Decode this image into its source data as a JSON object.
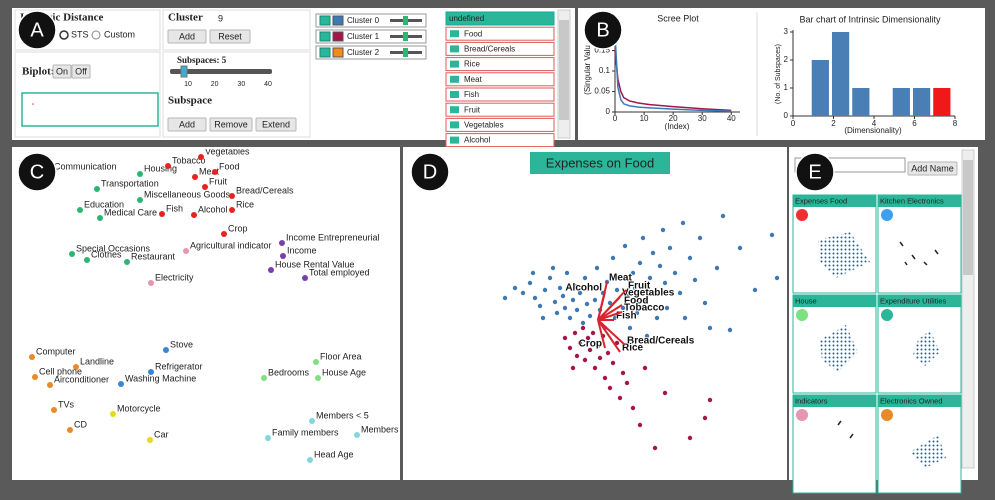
{
  "markers": [
    "A",
    "B",
    "C",
    "D",
    "E"
  ],
  "controls": {
    "distance_title": "Intrinsic Distance",
    "radio": [
      "STS",
      "Custom"
    ],
    "biplot_label": "Biplot:",
    "biplot_buttons": [
      "On",
      "Off"
    ],
    "cluster_label": "Cluster",
    "cluster_count": 9,
    "cluster_buttons": [
      "Add",
      "Reset"
    ],
    "subspaces_label": "Subspaces: 5",
    "slider_ticks": [
      10,
      20,
      30,
      40
    ],
    "subspace_label": "Subspace",
    "subspace_buttons": [
      "Add",
      "Remove",
      "Extend"
    ]
  },
  "clusters": [
    {
      "name": "Cluster 0",
      "color": "#3d7ab5"
    },
    {
      "name": "Cluster 1",
      "color": "#a6144a"
    },
    {
      "name": "Cluster 2",
      "color": "#f28a1c"
    }
  ],
  "dimensions": [
    "undefined",
    "Food",
    "Bread/Cereals",
    "Rice",
    "Meat",
    "Fish",
    "Fruit",
    "Vegetables",
    "Alcohol"
  ],
  "scree_plot": {
    "type": "line",
    "title": "Scree Plot",
    "x_label": "(Index)",
    "y_label": "(Singular Valu",
    "xlim": [
      0,
      43
    ],
    "ylim": [
      0,
      0.2
    ],
    "xticks": [
      0,
      10,
      20,
      30,
      40
    ],
    "yticks": [
      0,
      0.05,
      0.1,
      0.15
    ],
    "series": [
      {
        "color": "#a6144a",
        "x": [
          0,
          1,
          2,
          3,
          5,
          8,
          12,
          20,
          30,
          40
        ],
        "values": [
          0.15,
          0.08,
          0.05,
          0.035,
          0.027,
          0.022,
          0.018,
          0.013,
          0.008,
          0.004
        ]
      },
      {
        "color": "#3d7ab5",
        "x": [
          0,
          1,
          2,
          3,
          5,
          8,
          12,
          20,
          30,
          40
        ],
        "values": [
          0.19,
          0.06,
          0.03,
          0.02,
          0.015,
          0.012,
          0.01,
          0.007,
          0.004,
          0.002
        ]
      }
    ]
  },
  "dimensionality_chart": {
    "type": "bar",
    "title": "Bar chart of Intrinsic Dimensionality",
    "x_label": "(Dimensionality)",
    "y_label": "(No. of Subspaces)",
    "x": [
      1,
      2,
      3,
      5,
      6,
      7
    ],
    "values": [
      2,
      3,
      1,
      1,
      1,
      1
    ],
    "colors": [
      "#4a7fb5",
      "#4a7fb5",
      "#4a7fb5",
      "#4a7fb5",
      "#4a7fb5",
      "#f01818"
    ],
    "xlim": [
      0,
      8
    ],
    "ylim": [
      0,
      3
    ],
    "xticks": [
      0,
      2,
      4,
      6,
      8
    ],
    "yticks": [
      0,
      1,
      2,
      3
    ]
  },
  "dimension_map": {
    "type": "scatter",
    "xlim": [
      0,
      380
    ],
    "ylim": [
      0,
      325
    ],
    "points": [
      {
        "label": "Communication",
        "x": 35,
        "y": 303,
        "color": "#2bb673"
      },
      {
        "label": "Housing",
        "x": 125,
        "y": 301,
        "color": "#2bb673"
      },
      {
        "label": "Transportation",
        "x": 82,
        "y": 286,
        "color": "#2bb673"
      },
      {
        "label": "Miscellaneous Goods",
        "x": 125,
        "y": 275,
        "color": "#2bb673"
      },
      {
        "label": "Education",
        "x": 65,
        "y": 265,
        "color": "#2bb673"
      },
      {
        "label": "Medical Care",
        "x": 85,
        "y": 257,
        "color": "#2bb673"
      },
      {
        "label": "Special Occasions",
        "x": 57,
        "y": 221,
        "color": "#2bb673"
      },
      {
        "label": "Clothes",
        "x": 72,
        "y": 215,
        "color": "#2bb673"
      },
      {
        "label": "Restaurant",
        "x": 112,
        "y": 213,
        "color": "#2bb673"
      },
      {
        "label": "Tobacco",
        "x": 153,
        "y": 309,
        "color": "#e8231f"
      },
      {
        "label": "Vegetables",
        "x": 186,
        "y": 318,
        "color": "#e8231f"
      },
      {
        "label": "Meat",
        "x": 180,
        "y": 298,
        "color": "#e8231f"
      },
      {
        "label": "Food",
        "x": 200,
        "y": 303,
        "color": "#e8231f"
      },
      {
        "label": "Fruit",
        "x": 190,
        "y": 288,
        "color": "#e8231f"
      },
      {
        "label": "Bread/Cereals",
        "x": 217,
        "y": 279,
        "color": "#e8231f"
      },
      {
        "label": "Fish",
        "x": 147,
        "y": 261,
        "color": "#e8231f"
      },
      {
        "label": "Alcohol",
        "x": 179,
        "y": 260,
        "color": "#e8231f"
      },
      {
        "label": "Rice",
        "x": 217,
        "y": 265,
        "color": "#e8231f"
      },
      {
        "label": "Crop",
        "x": 209,
        "y": 241,
        "color": "#e8231f"
      },
      {
        "label": "Agricultural indicator",
        "x": 171,
        "y": 224,
        "color": "#e895b0"
      },
      {
        "label": "Electricity",
        "x": 136,
        "y": 192,
        "color": "#e895b0"
      },
      {
        "label": "Income Entrepreneurial",
        "x": 267,
        "y": 232,
        "color": "#7b3fa8"
      },
      {
        "label": "Income",
        "x": 268,
        "y": 219,
        "color": "#7b3fa8"
      },
      {
        "label": "House Rental Value",
        "x": 256,
        "y": 205,
        "color": "#7b3fa8"
      },
      {
        "label": "Total employed",
        "x": 290,
        "y": 197,
        "color": "#7b3fa8"
      },
      {
        "label": "Computer",
        "x": 17,
        "y": 118,
        "color": "#e88a2a"
      },
      {
        "label": "Landline",
        "x": 61,
        "y": 108,
        "color": "#e88a2a"
      },
      {
        "label": "Cell phone",
        "x": 20,
        "y": 98,
        "color": "#e88a2a"
      },
      {
        "label": "Airconditioner",
        "x": 35,
        "y": 90,
        "color": "#e88a2a"
      },
      {
        "label": "TVs",
        "x": 39,
        "y": 65,
        "color": "#e88a2a"
      },
      {
        "label": "CD",
        "x": 55,
        "y": 45,
        "color": "#e88a2a"
      },
      {
        "label": "Stove",
        "x": 151,
        "y": 125,
        "color": "#3a86d6"
      },
      {
        "label": "Refrigerator",
        "x": 136,
        "y": 103,
        "color": "#3a86d6"
      },
      {
        "label": "Washing Machine",
        "x": 106,
        "y": 91,
        "color": "#3a86d6"
      },
      {
        "label": "Motorcycle",
        "x": 98,
        "y": 61,
        "color": "#e6d81e"
      },
      {
        "label": "Car",
        "x": 135,
        "y": 35,
        "color": "#e6d81e"
      },
      {
        "label": "Floor Area",
        "x": 301,
        "y": 113,
        "color": "#7fe07f"
      },
      {
        "label": "Bedrooms",
        "x": 249,
        "y": 97,
        "color": "#7fe07f"
      },
      {
        "label": "House Age",
        "x": 303,
        "y": 97,
        "color": "#7fe07f"
      },
      {
        "label": "Members < 5",
        "x": 297,
        "y": 54,
        "color": "#7fd8dc"
      },
      {
        "label": "Family members",
        "x": 253,
        "y": 37,
        "color": "#7fd8dc"
      },
      {
        "label": "Members",
        "x": 342,
        "y": 40,
        "color": "#7fd8dc"
      },
      {
        "label": "Head Age",
        "x": 295,
        "y": 15,
        "color": "#7fd8dc"
      }
    ]
  },
  "projection": {
    "type": "scatter",
    "title": "Expenses on Food",
    "xlim": [
      0,
      380
    ],
    "ylim": [
      0,
      330
    ],
    "series": [
      {
        "color": "#3d7ab5",
        "points": [
          [
            110,
            190
          ],
          [
            118,
            185
          ],
          [
            125,
            195
          ],
          [
            130,
            180
          ],
          [
            135,
            172
          ],
          [
            140,
            188
          ],
          [
            145,
            200
          ],
          [
            150,
            176
          ],
          [
            152,
            165
          ],
          [
            155,
            190
          ],
          [
            158,
            182
          ],
          [
            160,
            170
          ],
          [
            162,
            205
          ],
          [
            165,
            160
          ],
          [
            168,
            178
          ],
          [
            170,
            192
          ],
          [
            172,
            168
          ],
          [
            175,
            185
          ],
          [
            178,
            155
          ],
          [
            180,
            200
          ],
          [
            182,
            174
          ],
          [
            185,
            162
          ],
          [
            188,
            190
          ],
          [
            190,
            178
          ],
          [
            192,
            210
          ],
          [
            195,
            168
          ],
          [
            198,
            185
          ],
          [
            200,
            150
          ],
          [
            202,
            196
          ],
          [
            205,
            175
          ],
          [
            208,
            220
          ],
          [
            210,
            160
          ],
          [
            212,
            188
          ],
          [
            215,
            200
          ],
          [
            218,
            170
          ],
          [
            220,
            232
          ],
          [
            222,
            182
          ],
          [
            225,
            150
          ],
          [
            228,
            205
          ],
          [
            230,
            190
          ],
          [
            232,
            165
          ],
          [
            235,
            215
          ],
          [
            238,
            240
          ],
          [
            240,
            178
          ],
          [
            242,
            142
          ],
          [
            245,
            200
          ],
          [
            248,
            225
          ],
          [
            250,
            185
          ],
          [
            252,
            160
          ],
          [
            255,
            212
          ],
          [
            258,
            248
          ],
          [
            260,
            195
          ],
          [
            262,
            170
          ],
          [
            265,
            230
          ],
          [
            268,
            138
          ],
          [
            270,
            205
          ],
          [
            275,
            185
          ],
          [
            278,
            255
          ],
          [
            280,
            160
          ],
          [
            285,
            220
          ],
          [
            290,
            198
          ],
          [
            295,
            240
          ],
          [
            300,
            175
          ],
          [
            305,
            150
          ],
          [
            312,
            210
          ],
          [
            318,
            262
          ],
          [
            325,
            148
          ],
          [
            335,
            230
          ],
          [
            350,
            188
          ],
          [
            367,
            243
          ],
          [
            372,
            200
          ],
          [
            128,
            205
          ],
          [
            138,
            160
          ],
          [
            148,
            210
          ],
          [
            100,
            180
          ]
        ]
      },
      {
        "color": "#a6144a",
        "points": [
          [
            160,
            140
          ],
          [
            165,
            130
          ],
          [
            170,
            145
          ],
          [
            172,
            122
          ],
          [
            175,
            135
          ],
          [
            178,
            150
          ],
          [
            180,
            118
          ],
          [
            183,
            140
          ],
          [
            185,
            128
          ],
          [
            188,
            145
          ],
          [
            190,
            110
          ],
          [
            193,
            132
          ],
          [
            195,
            120
          ],
          [
            198,
            142
          ],
          [
            200,
            100
          ],
          [
            203,
            125
          ],
          [
            205,
            90
          ],
          [
            208,
            115
          ],
          [
            212,
            135
          ],
          [
            215,
            80
          ],
          [
            218,
            105
          ],
          [
            222,
            95
          ],
          [
            228,
            70
          ],
          [
            235,
            53
          ],
          [
            240,
            110
          ],
          [
            250,
            30
          ],
          [
            260,
            85
          ],
          [
            285,
            40
          ],
          [
            305,
            78
          ],
          [
            300,
            60
          ],
          [
            168,
            110
          ]
        ]
      }
    ],
    "vector_color": "#d9232d",
    "origin": [
      193,
      158
    ],
    "vectors": [
      {
        "label": "Meat",
        "x": 202,
        "y": 196
      },
      {
        "label": "Fruit",
        "x": 221,
        "y": 188
      },
      {
        "label": "Vegetables",
        "x": 215,
        "y": 181
      },
      {
        "label": "Food",
        "x": 217,
        "y": 173
      },
      {
        "label": "Tobacco",
        "x": 217,
        "y": 166
      },
      {
        "label": "Fish",
        "x": 209,
        "y": 158
      },
      {
        "label": "Alcohol",
        "x": 200,
        "y": 186
      },
      {
        "label": "Bread/Cereals",
        "x": 220,
        "y": 133
      },
      {
        "label": "Crop",
        "x": 200,
        "y": 130
      },
      {
        "label": "Rice",
        "x": 215,
        "y": 126
      }
    ]
  },
  "subspace_gallery": {
    "name_button": "Add Name",
    "cards": [
      {
        "title": "Expenses Food",
        "color": "#f03030"
      },
      {
        "title": "Kitchen Electronics",
        "color": "#3aa0f0"
      },
      {
        "title": "House",
        "color": "#7fe07f"
      },
      {
        "title": "Expenditure Utilities",
        "color": "#2bb69a"
      },
      {
        "title": "Indicators",
        "color": "#e895b0"
      },
      {
        "title": "Electronics Owned",
        "color": "#e88a2a"
      }
    ]
  }
}
